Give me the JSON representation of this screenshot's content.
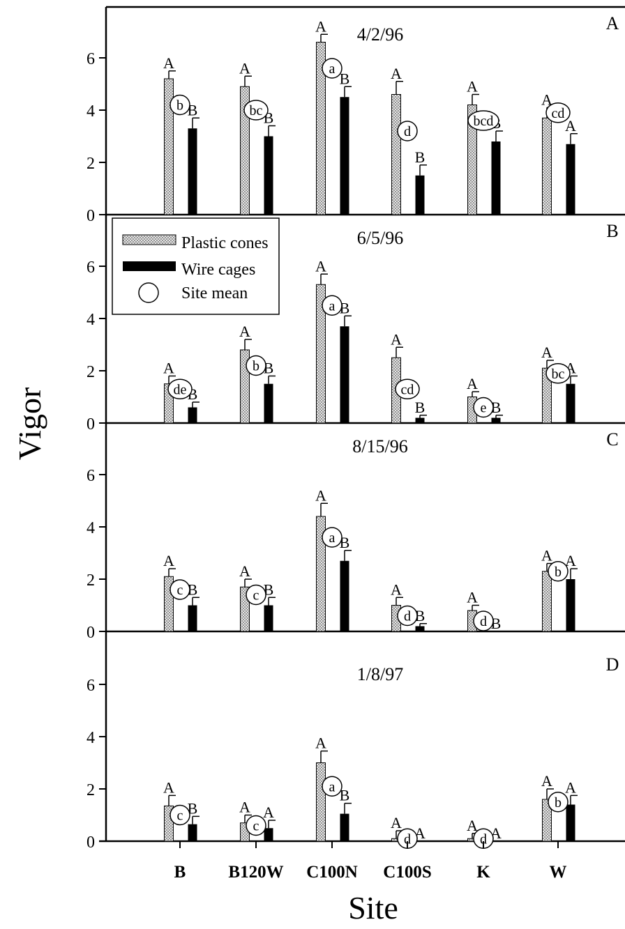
{
  "chart_data": {
    "type": "bar",
    "xlabel": "Site",
    "ylabel": "Vigor",
    "categories": [
      "B",
      "B120W",
      "C100N",
      "C100S",
      "K",
      "W"
    ],
    "ylim": [
      0,
      7.5
    ],
    "yticks": [
      "0",
      "2",
      "4",
      "6"
    ],
    "legend": {
      "placement": "top-left of panel B",
      "items": [
        {
          "label": "Plastic cones",
          "swatch": "hatched"
        },
        {
          "label": "Wire cages",
          "swatch": "solid"
        },
        {
          "label": "Site mean",
          "swatch": "circle"
        }
      ]
    },
    "colors": {
      "plastic": "#c8c8c8",
      "wire": "#000000",
      "axis": "#000000"
    },
    "panels": [
      {
        "letter": "A",
        "date": "4/2/96",
        "series": [
          {
            "name": "Plastic cones",
            "values": [
              5.2,
              4.9,
              6.6,
              4.6,
              4.2,
              3.7
            ],
            "errors": [
              0.3,
              0.4,
              0.3,
              0.5,
              0.4,
              0.4
            ],
            "letters": [
              "A",
              "A",
              "A",
              "A",
              "A",
              "A"
            ]
          },
          {
            "name": "Wire cages",
            "values": [
              3.3,
              3.0,
              4.5,
              1.5,
              2.8,
              2.7
            ],
            "errors": [
              0.4,
              0.4,
              0.4,
              0.4,
              0.4,
              0.4
            ],
            "letters": [
              "B",
              "B",
              "B",
              "B",
              "B",
              "A"
            ]
          }
        ],
        "site_mean_letters": [
          "b",
          "bc",
          "a",
          "d",
          "bcd",
          "cd"
        ],
        "site_mean_y": [
          4.2,
          4.0,
          5.6,
          3.2,
          3.6,
          3.9
        ]
      },
      {
        "letter": "B",
        "date": "6/5/96",
        "series": [
          {
            "name": "Plastic cones",
            "values": [
              1.5,
              2.8,
              5.3,
              2.5,
              1.0,
              2.1
            ],
            "errors": [
              0.3,
              0.4,
              0.4,
              0.4,
              0.2,
              0.3
            ],
            "letters": [
              "A",
              "A",
              "A",
              "A",
              "A",
              "A"
            ]
          },
          {
            "name": "Wire cages",
            "values": [
              0.6,
              1.5,
              3.7,
              0.2,
              0.2,
              1.5
            ],
            "errors": [
              0.2,
              0.3,
              0.4,
              0.1,
              0.1,
              0.3
            ],
            "letters": [
              "B",
              "B",
              "B",
              "B",
              "B",
              "A"
            ]
          }
        ],
        "site_mean_letters": [
          "de",
          "b",
          "a",
          "cd",
          "e",
          "bc"
        ],
        "site_mean_y": [
          1.3,
          2.2,
          4.5,
          1.3,
          0.6,
          1.9
        ]
      },
      {
        "letter": "C",
        "date": "8/15/96",
        "series": [
          {
            "name": "Plastic cones",
            "values": [
              2.1,
              1.7,
              4.4,
              1.0,
              0.8,
              2.3
            ],
            "errors": [
              0.3,
              0.3,
              0.5,
              0.3,
              0.2,
              0.3
            ],
            "letters": [
              "A",
              "A",
              "A",
              "A",
              "A",
              "A"
            ]
          },
          {
            "name": "Wire cages",
            "values": [
              1.0,
              1.0,
              2.7,
              0.2,
              0.0,
              2.0
            ],
            "errors": [
              0.3,
              0.3,
              0.4,
              0.1,
              0.0,
              0.4
            ],
            "letters": [
              "B",
              "B",
              "B",
              "B",
              "B",
              "A"
            ]
          }
        ],
        "site_mean_letters": [
          "c",
          "c",
          "a",
          "d",
          "d",
          "b"
        ],
        "site_mean_y": [
          1.6,
          1.4,
          3.6,
          0.6,
          0.4,
          2.3
        ]
      },
      {
        "letter": "D",
        "date": "1/8/97",
        "series": [
          {
            "name": "Plastic cones",
            "values": [
              1.35,
              0.7,
              3.0,
              0.1,
              0.1,
              1.6
            ],
            "errors": [
              0.4,
              0.3,
              0.45,
              0.3,
              0.2,
              0.4
            ],
            "letters": [
              "A",
              "A",
              "A",
              "A",
              "A",
              "A"
            ]
          },
          {
            "name": "Wire cages",
            "values": [
              0.65,
              0.5,
              1.05,
              0.0,
              0.0,
              1.4
            ],
            "errors": [
              0.3,
              0.3,
              0.4,
              0.0,
              0.0,
              0.35
            ],
            "letters": [
              "B",
              "A",
              "B",
              "A",
              "A",
              "A"
            ]
          }
        ],
        "site_mean_letters": [
          "c",
          "c",
          "a",
          "d",
          "d",
          "b"
        ],
        "site_mean_y": [
          1.0,
          0.6,
          2.1,
          0.1,
          0.1,
          1.5
        ]
      }
    ]
  }
}
